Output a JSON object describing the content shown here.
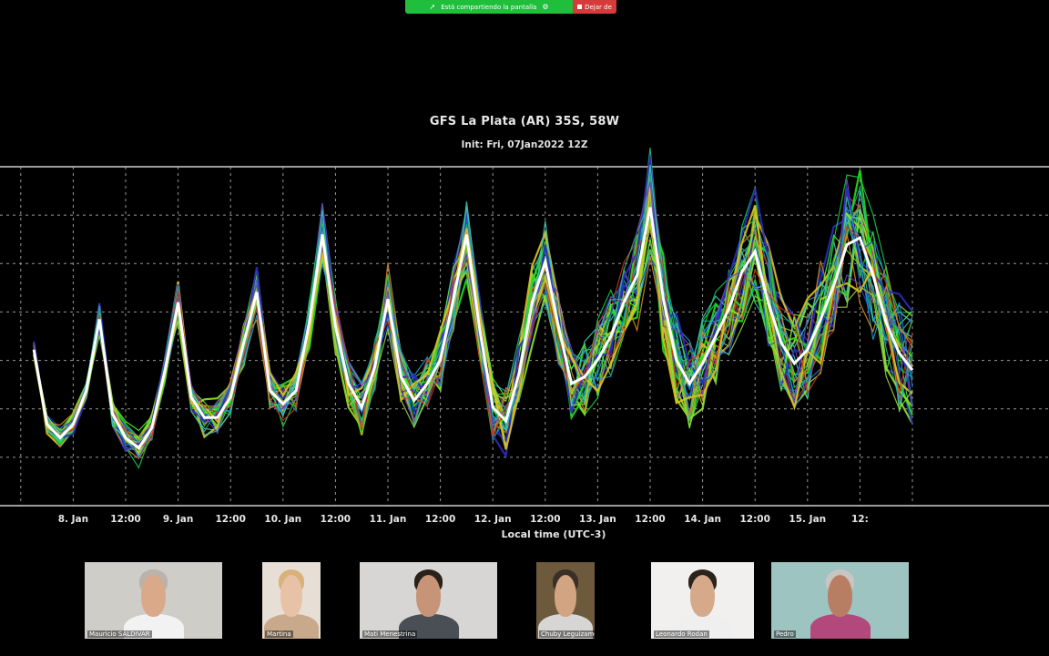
{
  "share_banner": {
    "status_text": "Está compartiendo la pantalla",
    "stop_label": "Dejar de"
  },
  "chart_data": {
    "type": "line",
    "title": "GFS La Plata (AR) 35S, 58W",
    "subtitle": "Init: Fri, 07Jan2022 12Z",
    "xlabel": "Local time (UTC-3)",
    "ylabel": "",
    "x_ticks": [
      "8. Jan",
      "12:00",
      "9. Jan",
      "12:00",
      "10. Jan",
      "12:00",
      "11. Jan",
      "12:00",
      "12. Jan",
      "12:00",
      "13. Jan",
      "12:00",
      "14. Jan",
      "12:00",
      "15. Jan",
      "12:"
    ],
    "grid": true,
    "x_hours": [
      -21,
      -18,
      -15,
      -12,
      -9,
      -6,
      -3,
      0,
      3,
      6,
      9,
      12,
      15,
      18,
      21,
      24,
      27,
      30,
      33,
      36,
      39,
      42,
      45,
      48,
      51,
      54,
      57,
      60,
      63,
      66,
      69,
      72,
      75,
      78,
      81,
      84,
      87,
      90,
      93,
      96,
      99,
      102,
      105,
      108,
      111,
      114,
      117,
      120,
      123,
      126,
      129,
      132,
      135,
      138,
      141,
      144,
      147,
      150,
      153,
      156,
      159,
      162,
      165,
      168,
      171,
      174,
      177,
      180
    ],
    "ensemble_mean": [
      5.6,
      3.4,
      3.0,
      3.4,
      4.4,
      6.5,
      3.7,
      3.0,
      2.7,
      3.3,
      5.0,
      7.0,
      4.2,
      3.6,
      3.6,
      4.2,
      5.8,
      7.3,
      4.4,
      4.0,
      4.4,
      6.4,
      9.0,
      6.3,
      4.6,
      3.9,
      5.1,
      7.1,
      4.8,
      4.1,
      4.6,
      5.3,
      7.1,
      9.0,
      6.2,
      3.9,
      3.5,
      4.9,
      7.0,
      8.2,
      6.3,
      4.6,
      4.8,
      5.3,
      6.0,
      7.0,
      7.8,
      9.8,
      7.1,
      5.3,
      4.6,
      5.2,
      6.0,
      6.8,
      7.9,
      8.5,
      7.0,
      5.8,
      5.2,
      5.6,
      6.5,
      7.5,
      8.7,
      8.9,
      7.8,
      6.4,
      5.5,
      5.0
    ],
    "colors": {
      "background": "#000000",
      "mean_line": "#ffffff",
      "grid": "#bdbdbd",
      "members": [
        "#22e01a",
        "#35d52b",
        "#51f337",
        "#14c93f",
        "#8ee02e",
        "#1d9bd0",
        "#1f7ad1",
        "#1a47c8",
        "#2b2cba",
        "#2fb08e",
        "#3fc6b5",
        "#d88a1f",
        "#e0c21f",
        "#c23a1a",
        "#6a3fb5",
        "#9ad33f"
      ]
    }
  },
  "participants": [
    {
      "name": "Mauricio SALDIVAR",
      "bg": "#cfcdc8",
      "skin": "#d9a98a",
      "shirt": "#f2f2f2",
      "hair": "#b9b3ac"
    },
    {
      "name": "Martina",
      "bg": "#e7dfd6",
      "skin": "#e8c2a6",
      "shirt": "#c9a98c",
      "hair": "#d9b27a"
    },
    {
      "name": "Mati Menestrina",
      "bg": "#d8d6d4",
      "skin": "#c89477",
      "shirt": "#4a4f55",
      "hair": "#2a211c"
    },
    {
      "name": "Chuby Leguizamon",
      "bg": "#6d5a3c",
      "skin": "#d3a482",
      "shirt": "#d8d6d4",
      "hair": "#3a2f26"
    },
    {
      "name": "Leonardo Rodan",
      "bg": "#f2f0ee",
      "skin": "#d6a98a",
      "shirt": "#efefef",
      "hair": "#2b231e"
    },
    {
      "name": "Pedro",
      "bg": "#9ec4c1",
      "skin": "#b87e63",
      "shirt": "#b2487c",
      "hair": "#c9c5c2"
    }
  ]
}
